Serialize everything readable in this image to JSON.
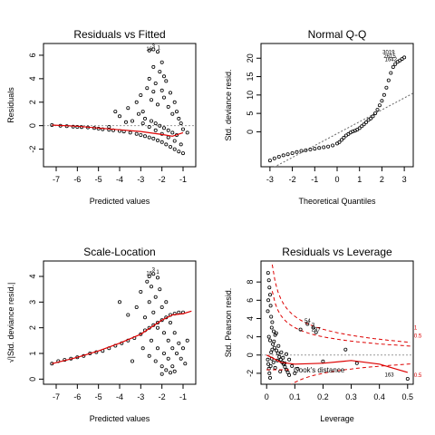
{
  "chart_data": [
    {
      "type": "scatter",
      "title": "Residuals vs Fitted",
      "xlabel": "Predicted values",
      "ylabel": "Residuals",
      "xlim": [
        -7.6,
        -0.4
      ],
      "ylim": [
        -3.5,
        7.0
      ],
      "xticks": [
        -7,
        -6,
        -5,
        -4,
        -3,
        -2,
        -1
      ],
      "yticks": [
        -2,
        0,
        2,
        4,
        6
      ],
      "reference_line": 0,
      "smooth": [
        [
          -7.2,
          0.05
        ],
        [
          -6,
          -0.05
        ],
        [
          -5,
          -0.2
        ],
        [
          -4,
          -0.35
        ],
        [
          -3,
          -0.5
        ],
        [
          -2,
          -0.75
        ],
        [
          -1.5,
          -0.9
        ],
        [
          -1,
          -0.6
        ]
      ],
      "point_labels": [
        {
          "text": "16",
          "x": -2.6,
          "y": 6.4
        },
        {
          "text": "3",
          "x": -2.4,
          "y": 6.6
        },
        {
          "text": "1",
          "x": -2.15,
          "y": 6.5
        }
      ],
      "points": [
        [
          -7.2,
          0.05
        ],
        [
          -6.8,
          0.0
        ],
        [
          -6.5,
          -0.05
        ],
        [
          -6.2,
          -0.08
        ],
        [
          -6.0,
          -0.1
        ],
        [
          -5.8,
          -0.12
        ],
        [
          -5.5,
          -0.15
        ],
        [
          -5.2,
          -0.2
        ],
        [
          -5.0,
          -0.25
        ],
        [
          -4.8,
          -0.3
        ],
        [
          -4.5,
          -0.35
        ],
        [
          -4.3,
          -0.4
        ],
        [
          -4.0,
          -0.45
        ],
        [
          -3.8,
          -0.5
        ],
        [
          -3.5,
          -0.6
        ],
        [
          -3.2,
          -0.7
        ],
        [
          -3.0,
          -0.8
        ],
        [
          -2.8,
          -0.9
        ],
        [
          -2.6,
          -1.0
        ],
        [
          -2.4,
          -1.1
        ],
        [
          -2.2,
          -1.25
        ],
        [
          -2.0,
          -1.4
        ],
        [
          -1.8,
          -1.6
        ],
        [
          -1.6,
          -1.8
        ],
        [
          -1.4,
          -2.0
        ],
        [
          -1.2,
          -2.2
        ],
        [
          -1.0,
          -2.35
        ],
        [
          -4.2,
          1.2
        ],
        [
          -4.0,
          0.8
        ],
        [
          -3.6,
          1.5
        ],
        [
          -3.4,
          0.4
        ],
        [
          -3.2,
          2.0
        ],
        [
          -3.0,
          2.6
        ],
        [
          -2.9,
          1.2
        ],
        [
          -2.7,
          3.2
        ],
        [
          -2.6,
          4.0
        ],
        [
          -2.5,
          2.2
        ],
        [
          -2.4,
          5.0
        ],
        [
          -2.3,
          3.6
        ],
        [
          -2.2,
          1.8
        ],
        [
          -2.1,
          4.6
        ],
        [
          -2.0,
          3.0
        ],
        [
          -1.9,
          2.4
        ],
        [
          -1.8,
          3.8
        ],
        [
          -1.7,
          1.6
        ],
        [
          -1.6,
          2.8
        ],
        [
          -1.5,
          1.0
        ],
        [
          -1.4,
          2.0
        ],
        [
          -1.3,
          1.2
        ],
        [
          -1.2,
          0.6
        ],
        [
          -1.1,
          0.2
        ],
        [
          -1.0,
          -0.3
        ],
        [
          -0.8,
          -0.6
        ],
        [
          -3.1,
          1.0
        ],
        [
          -2.8,
          0.6
        ],
        [
          -2.5,
          0.4
        ],
        [
          -2.3,
          0.2
        ],
        [
          -2.1,
          0.0
        ],
        [
          -1.9,
          -0.2
        ],
        [
          -1.7,
          -0.4
        ],
        [
          -1.5,
          -0.6
        ],
        [
          -1.3,
          -0.8
        ],
        [
          -2.9,
          0.2
        ],
        [
          -2.6,
          -0.1
        ],
        [
          -2.3,
          -0.4
        ],
        [
          -2.0,
          -0.7
        ],
        [
          -1.7,
          -1.0
        ],
        [
          -1.4,
          -1.3
        ],
        [
          -1.1,
          -1.6
        ],
        [
          -2.6,
          6.4
        ],
        [
          -2.4,
          6.5
        ],
        [
          -2.2,
          6.3
        ],
        [
          -4.5,
          -0.1
        ],
        [
          -3.7,
          0.3
        ],
        [
          -2.0,
          5.4
        ],
        [
          -1.9,
          4.2
        ],
        [
          -2.4,
          2.9
        ]
      ]
    },
    {
      "type": "scatter",
      "title": "Normal Q-Q",
      "xlabel": "Theoretical Quantiles",
      "ylabel": "Std. deviance resid.",
      "xlim": [
        -3.4,
        3.4
      ],
      "ylim": [
        -9.5,
        24.0
      ],
      "xticks": [
        -3,
        -2,
        -1,
        0,
        1,
        2,
        3
      ],
      "yticks": [
        0,
        5,
        10,
        15,
        20
      ],
      "reference_line_points": [
        [
          -3.4,
          -11.5
        ],
        [
          3.4,
          10.5
        ]
      ],
      "point_labels": [
        {
          "text": "3019",
          "x": 2.3,
          "y": 21.2
        },
        {
          "text": "2615",
          "x": 2.35,
          "y": 20.0
        },
        {
          "text": "1642",
          "x": 2.4,
          "y": 19.2
        }
      ],
      "points": [
        [
          -3.0,
          -7.8
        ],
        [
          -2.8,
          -7.2
        ],
        [
          -2.6,
          -6.8
        ],
        [
          -2.4,
          -6.4
        ],
        [
          -2.2,
          -6.1
        ],
        [
          -2.0,
          -5.8
        ],
        [
          -1.8,
          -5.5
        ],
        [
          -1.6,
          -5.2
        ],
        [
          -1.4,
          -5.0
        ],
        [
          -1.2,
          -4.8
        ],
        [
          -1.0,
          -4.6
        ],
        [
          -0.8,
          -4.4
        ],
        [
          -0.6,
          -4.2
        ],
        [
          -0.4,
          -4.0
        ],
        [
          -0.2,
          -3.7
        ],
        [
          0.0,
          -3.2
        ],
        [
          0.1,
          -2.8
        ],
        [
          0.2,
          -2.2
        ],
        [
          0.3,
          -1.6
        ],
        [
          0.4,
          -1.0
        ],
        [
          0.5,
          -0.6
        ],
        [
          0.6,
          -0.2
        ],
        [
          0.7,
          0.1
        ],
        [
          0.8,
          0.3
        ],
        [
          0.9,
          0.6
        ],
        [
          1.0,
          1.0
        ],
        [
          1.1,
          1.5
        ],
        [
          1.2,
          2.0
        ],
        [
          1.3,
          2.6
        ],
        [
          1.4,
          3.2
        ],
        [
          1.5,
          3.6
        ],
        [
          1.6,
          4.2
        ],
        [
          1.7,
          5.0
        ],
        [
          1.8,
          6.0
        ],
        [
          1.9,
          7.2
        ],
        [
          2.0,
          8.4
        ],
        [
          2.1,
          10.0
        ],
        [
          2.2,
          12.0
        ],
        [
          2.3,
          14.0
        ],
        [
          2.4,
          16.0
        ],
        [
          2.5,
          17.6
        ],
        [
          2.6,
          18.4
        ],
        [
          2.7,
          19.0
        ],
        [
          2.8,
          19.4
        ],
        [
          2.9,
          19.8
        ],
        [
          3.0,
          20.2
        ]
      ]
    },
    {
      "type": "scatter",
      "title": "Scale-Location",
      "xlabel": "Predicted values",
      "ylabel": "√|Std. deviance resid.|",
      "xlim": [
        -7.6,
        -0.4
      ],
      "ylim": [
        -0.2,
        4.6
      ],
      "xticks": [
        -7,
        -6,
        -5,
        -4,
        -3,
        -2,
        -1
      ],
      "yticks": [
        0,
        1,
        2,
        3,
        4
      ],
      "smooth": [
        [
          -7.2,
          0.6
        ],
        [
          -6,
          0.85
        ],
        [
          -5,
          1.1
        ],
        [
          -4,
          1.4
        ],
        [
          -3,
          1.75
        ],
        [
          -2,
          2.3
        ],
        [
          -1.5,
          2.5
        ],
        [
          -1,
          2.55
        ],
        [
          -0.6,
          2.65
        ]
      ],
      "point_labels": [
        {
          "text": "16",
          "x": -2.6,
          "y": 4.05
        },
        {
          "text": "3",
          "x": -2.4,
          "y": 4.2
        },
        {
          "text": "1",
          "x": -2.2,
          "y": 4.1
        }
      ],
      "points": [
        [
          -7.2,
          0.6
        ],
        [
          -6.9,
          0.7
        ],
        [
          -6.6,
          0.75
        ],
        [
          -6.3,
          0.8
        ],
        [
          -6.0,
          0.85
        ],
        [
          -5.7,
          0.9
        ],
        [
          -5.4,
          1.0
        ],
        [
          -5.1,
          1.05
        ],
        [
          -4.8,
          1.1
        ],
        [
          -4.5,
          1.2
        ],
        [
          -4.2,
          1.3
        ],
        [
          -3.9,
          1.4
        ],
        [
          -3.6,
          1.5
        ],
        [
          -3.3,
          1.6
        ],
        [
          -3.0,
          1.75
        ],
        [
          -2.8,
          1.9
        ],
        [
          -2.6,
          2.0
        ],
        [
          -2.4,
          2.1
        ],
        [
          -2.2,
          2.2
        ],
        [
          -2.0,
          2.3
        ],
        [
          -1.8,
          2.4
        ],
        [
          -1.6,
          2.5
        ],
        [
          -1.4,
          2.55
        ],
        [
          -1.2,
          2.6
        ],
        [
          -1.0,
          2.6
        ],
        [
          -4.0,
          3.0
        ],
        [
          -3.6,
          2.5
        ],
        [
          -3.2,
          2.8
        ],
        [
          -3.0,
          3.4
        ],
        [
          -2.8,
          2.4
        ],
        [
          -2.7,
          3.8
        ],
        [
          -2.6,
          3.0
        ],
        [
          -2.5,
          3.6
        ],
        [
          -2.4,
          2.6
        ],
        [
          -2.3,
          3.2
        ],
        [
          -2.2,
          2.0
        ],
        [
          -2.1,
          3.5
        ],
        [
          -2.0,
          2.8
        ],
        [
          -1.9,
          1.8
        ],
        [
          -1.8,
          3.0
        ],
        [
          -1.7,
          1.5
        ],
        [
          -1.6,
          2.2
        ],
        [
          -1.5,
          1.2
        ],
        [
          -1.4,
          1.8
        ],
        [
          -1.3,
          1.0
        ],
        [
          -1.2,
          1.4
        ],
        [
          -1.1,
          0.8
        ],
        [
          -1.0,
          1.2
        ],
        [
          -0.9,
          0.6
        ],
        [
          -0.8,
          1.5
        ],
        [
          -2.9,
          1.2
        ],
        [
          -2.6,
          0.9
        ],
        [
          -2.3,
          0.7
        ],
        [
          -2.0,
          0.5
        ],
        [
          -1.8,
          0.35
        ],
        [
          -1.6,
          0.25
        ],
        [
          -1.4,
          0.3
        ],
        [
          -2.5,
          1.5
        ],
        [
          -2.2,
          1.2
        ],
        [
          -1.9,
          1.0
        ],
        [
          -1.7,
          0.8
        ],
        [
          -2.0,
          0.2
        ],
        [
          -1.5,
          0.5
        ],
        [
          -2.6,
          4.0
        ],
        [
          -2.4,
          4.1
        ],
        [
          -2.2,
          3.95
        ],
        [
          -3.4,
          0.7
        ]
      ]
    },
    {
      "type": "scatter",
      "title": "Residuals vs Leverage",
      "xlabel": "Leverage",
      "ylabel": "Std. Pearson resid.",
      "xlim": [
        -0.02,
        0.52
      ],
      "ylim": [
        -3.2,
        10.3
      ],
      "xticks": [
        0.0,
        0.1,
        0.2,
        0.3,
        0.4,
        0.5
      ],
      "yticks": [
        -2,
        0,
        2,
        4,
        6,
        8
      ],
      "reference_line": 0,
      "legend_text": "Cook's distance",
      "contour_labels": [
        {
          "text": "1",
          "x": 0.51,
          "y": 2.8
        },
        {
          "text": "0.5",
          "x": 0.51,
          "y": 1.9
        },
        {
          "text": "0.5",
          "x": 0.51,
          "y": -2.4
        }
      ],
      "smooth": [
        [
          0.0,
          0.0
        ],
        [
          0.02,
          -0.3
        ],
        [
          0.05,
          -0.8
        ],
        [
          0.1,
          -1.0
        ],
        [
          0.2,
          -0.9
        ],
        [
          0.3,
          -0.6
        ],
        [
          0.4,
          -1.0
        ],
        [
          0.5,
          -1.9
        ]
      ],
      "point_labels": [
        {
          "text": "54",
          "x": 0.145,
          "y": 3.55
        },
        {
          "text": "3",
          "x": 0.165,
          "y": 3.1
        },
        {
          "text": "287",
          "x": 0.175,
          "y": 2.6
        },
        {
          "text": "163",
          "x": 0.435,
          "y": -2.35
        }
      ],
      "points": [
        [
          0.005,
          9.0
        ],
        [
          0.008,
          8.2
        ],
        [
          0.01,
          7.4
        ],
        [
          0.012,
          6.6
        ],
        [
          0.006,
          6.0
        ],
        [
          0.014,
          5.4
        ],
        [
          0.004,
          4.8
        ],
        [
          0.016,
          4.2
        ],
        [
          0.02,
          3.6
        ],
        [
          0.018,
          3.0
        ],
        [
          0.025,
          2.6
        ],
        [
          0.03,
          2.2
        ],
        [
          0.008,
          2.0
        ],
        [
          0.012,
          1.6
        ],
        [
          0.022,
          1.2
        ],
        [
          0.028,
          0.8
        ],
        [
          0.035,
          0.5
        ],
        [
          0.04,
          0.2
        ],
        [
          0.045,
          -0.2
        ],
        [
          0.05,
          -0.5
        ],
        [
          0.055,
          -0.8
        ],
        [
          0.06,
          -1.0
        ],
        [
          0.065,
          -1.3
        ],
        [
          0.07,
          -1.6
        ],
        [
          0.075,
          -1.9
        ],
        [
          0.08,
          -2.2
        ],
        [
          0.004,
          -0.5
        ],
        [
          0.006,
          -1.0
        ],
        [
          0.008,
          -1.5
        ],
        [
          0.01,
          -2.0
        ],
        [
          0.012,
          -2.5
        ],
        [
          0.014,
          -1.2
        ],
        [
          0.016,
          0.3
        ],
        [
          0.018,
          -0.4
        ],
        [
          0.02,
          0.6
        ],
        [
          0.024,
          -0.8
        ],
        [
          0.026,
          1.5
        ],
        [
          0.03,
          -1.4
        ],
        [
          0.034,
          2.4
        ],
        [
          0.038,
          -0.6
        ],
        [
          0.042,
          1.0
        ],
        [
          0.048,
          -1.8
        ],
        [
          0.052,
          0.3
        ],
        [
          0.058,
          -0.3
        ],
        [
          0.064,
          -0.9
        ],
        [
          0.07,
          0.1
        ],
        [
          0.08,
          -0.5
        ],
        [
          0.09,
          -1.2
        ],
        [
          0.1,
          -2.0
        ],
        [
          0.11,
          -1.5
        ],
        [
          0.145,
          3.4
        ],
        [
          0.165,
          3.0
        ],
        [
          0.175,
          2.5
        ],
        [
          0.12,
          2.8
        ],
        [
          0.2,
          -0.7
        ],
        [
          0.28,
          0.6
        ],
        [
          0.32,
          -0.9
        ],
        [
          0.5,
          -2.6
        ]
      ]
    }
  ]
}
